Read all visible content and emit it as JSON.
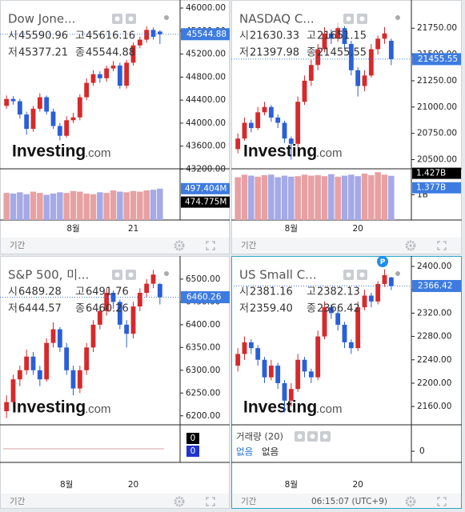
{
  "watermark": {
    "brand": "Investing",
    "domain": ".com"
  },
  "chart_data": [
    {
      "type": "candlestick",
      "title": "Dow Jone...",
      "up_color": "#d6292b",
      "down_color": "#2a5fd8",
      "info": [
        {
          "key": "시",
          "value": "45590.96"
        },
        {
          "key": "고",
          "value": "45616.16"
        },
        {
          "key": "저",
          "value": "45377.21"
        },
        {
          "key": "종",
          "value": "45544.88"
        }
      ],
      "categories": [
        null,
        null,
        null,
        null,
        null,
        null,
        null,
        null,
        null,
        null,
        "8월",
        null,
        null,
        null,
        null,
        null,
        null,
        null,
        null,
        "21",
        null,
        null,
        null,
        null
      ],
      "candles": [
        [
          44300,
          44480,
          44250,
          44420
        ],
        [
          44420,
          44470,
          44320,
          44380
        ],
        [
          44380,
          44420,
          44080,
          44150
        ],
        [
          44150,
          44200,
          43800,
          43900
        ],
        [
          43900,
          44300,
          43850,
          44250
        ],
        [
          44250,
          44520,
          44200,
          44450
        ],
        [
          44450,
          44480,
          44150,
          44200
        ],
        [
          44200,
          44250,
          43900,
          43950
        ],
        [
          43950,
          44000,
          43700,
          43780
        ],
        [
          43780,
          44120,
          43750,
          44050
        ],
        [
          44050,
          44180,
          44000,
          44100
        ],
        [
          44100,
          44500,
          44050,
          44450
        ],
        [
          44450,
          44780,
          44400,
          44700
        ],
        [
          44700,
          44920,
          44650,
          44850
        ],
        [
          44850,
          44900,
          44700,
          44780
        ],
        [
          44780,
          45000,
          44720,
          44950
        ],
        [
          44950,
          45080,
          44900,
          45000
        ],
        [
          45000,
          45050,
          44600,
          44650
        ],
        [
          44650,
          45100,
          44600,
          45050
        ],
        [
          45050,
          45400,
          45000,
          45350
        ],
        [
          45350,
          45500,
          45300,
          45450
        ],
        [
          45450,
          45680,
          45400,
          45620
        ],
        [
          45620,
          45660,
          45450,
          45500
        ],
        [
          45590.96,
          45616.16,
          45377.21,
          45544.88
        ]
      ],
      "ylim": [
        43220,
        46070
      ],
      "yticks": [
        {
          "value": 43200,
          "label": "43200.00"
        },
        {
          "value": 43600,
          "label": "43600.00"
        },
        {
          "value": 44000,
          "label": "44000.00"
        },
        {
          "value": 44400,
          "label": "44400.00"
        },
        {
          "value": 44800,
          "label": "44800.00"
        },
        {
          "value": 45200,
          "label": "45200.00"
        },
        {
          "value": 45600,
          "label": "45600.00"
        },
        {
          "value": 46000,
          "label": "46000.00"
        }
      ],
      "volume": [
        430,
        420,
        440,
        410,
        450,
        430,
        400,
        420,
        440,
        430,
        460,
        450,
        420,
        410,
        440,
        430,
        470,
        450,
        440,
        460,
        450,
        470,
        480,
        497.404
      ],
      "vol_ylim": [
        0,
        800
      ],
      "volume_labels": [
        {
          "value": 497.404,
          "label": "497.404M"
        },
        {
          "value": 474.775,
          "label": "474.775M"
        }
      ],
      "volume_label_colors": [
        "#3d7be0",
        "#000000"
      ],
      "footer": "기간"
    },
    {
      "type": "candlestick",
      "title": "NASDAQ C...",
      "up_color": "#d6292b",
      "down_color": "#2a5fd8",
      "info": [
        {
          "key": "시",
          "value": "21630.33"
        },
        {
          "key": "고",
          "value": "21651.15"
        },
        {
          "key": "저",
          "value": "21397.98"
        },
        {
          "key": "종",
          "value": "21455.55"
        }
      ],
      "categories": [
        null,
        null,
        null,
        null,
        null,
        null,
        null,
        null,
        "8월",
        null,
        null,
        null,
        null,
        null,
        null,
        null,
        null,
        null,
        "20",
        null,
        null,
        null,
        null,
        null
      ],
      "candles": [
        [
          20600,
          20750,
          20560,
          20700
        ],
        [
          20700,
          20900,
          20680,
          20850
        ],
        [
          20850,
          20880,
          20760,
          20800
        ],
        [
          20800,
          21000,
          20780,
          20950
        ],
        [
          20950,
          21050,
          20920,
          21000
        ],
        [
          21000,
          21020,
          20860,
          20900
        ],
        [
          20900,
          20930,
          20800,
          20850
        ],
        [
          20850,
          20870,
          20660,
          20700
        ],
        [
          20700,
          20720,
          20500,
          20650
        ],
        [
          20650,
          21100,
          20620,
          21050
        ],
        [
          21050,
          21300,
          21020,
          21250
        ],
        [
          21250,
          21450,
          21200,
          21400
        ],
        [
          21400,
          21600,
          21350,
          21550
        ],
        [
          21550,
          21760,
          21520,
          21700
        ],
        [
          21700,
          21740,
          21600,
          21650
        ],
        [
          21650,
          21800,
          21620,
          21750
        ],
        [
          21750,
          21770,
          21550,
          21600
        ],
        [
          21600,
          21630,
          21300,
          21350
        ],
        [
          21350,
          21380,
          21100,
          21200
        ],
        [
          21200,
          21350,
          21150,
          21300
        ],
        [
          21300,
          21600,
          21280,
          21550
        ],
        [
          21550,
          21680,
          21500,
          21650
        ],
        [
          21650,
          21760,
          21600,
          21700
        ],
        [
          21630.33,
          21651.15,
          21397.98,
          21455.55
        ]
      ],
      "ylim": [
        20420,
        21980
      ],
      "yticks": [
        {
          "value": 20500,
          "label": "20500.00"
        },
        {
          "value": 20750,
          "label": "20750.00"
        },
        {
          "value": 21000,
          "label": "21000.00"
        },
        {
          "value": 21250,
          "label": "21250.00"
        },
        {
          "value": 21500,
          "label": "21500.00"
        },
        {
          "value": 21750,
          "label": "21750.00"
        }
      ],
      "volume": [
        1.35,
        1.4,
        1.38,
        1.36,
        1.39,
        1.4,
        1.35,
        1.38,
        1.36,
        1.37,
        1.4,
        1.38,
        1.39,
        1.37,
        1.41,
        1.36,
        1.38,
        1.4,
        1.37,
        1.42,
        1.39,
        1.45,
        1.4,
        1.377
      ],
      "vol_ylim": [
        0.5,
        1.5
      ],
      "sub_yticks": [
        {
          "value": 1,
          "label": "1B"
        }
      ],
      "volume_labels": [
        {
          "value": 1.427,
          "label": "1.427B"
        },
        {
          "value": 1.377,
          "label": "1.377B"
        }
      ],
      "volume_label_colors": [
        "#000000",
        "#3d7be0"
      ],
      "footer": "기간"
    },
    {
      "type": "candlestick",
      "title": "S&P 500, 미...",
      "up_color": "#d6292b",
      "down_color": "#2a5fd8",
      "info": [
        {
          "key": "시",
          "value": "6489.28"
        },
        {
          "key": "고",
          "value": "6491.76"
        },
        {
          "key": "저",
          "value": "6444.57"
        },
        {
          "key": "종",
          "value": "6460.26"
        }
      ],
      "categories": [
        null,
        null,
        null,
        null,
        null,
        null,
        null,
        null,
        null,
        "8월",
        null,
        null,
        null,
        null,
        null,
        null,
        null,
        null,
        null,
        "20",
        null,
        null,
        null,
        null
      ],
      "candles": [
        [
          6210,
          6245,
          6195,
          6230
        ],
        [
          6230,
          6290,
          6220,
          6280
        ],
        [
          6280,
          6310,
          6265,
          6300
        ],
        [
          6300,
          6345,
          6290,
          6330
        ],
        [
          6330,
          6340,
          6290,
          6300
        ],
        [
          6300,
          6310,
          6265,
          6280
        ],
        [
          6280,
          6370,
          6275,
          6360
        ],
        [
          6360,
          6405,
          6350,
          6390
        ],
        [
          6390,
          6395,
          6340,
          6350
        ],
        [
          6350,
          6360,
          6290,
          6300
        ],
        [
          6300,
          6310,
          6245,
          6260
        ],
        [
          6260,
          6310,
          6250,
          6300
        ],
        [
          6300,
          6360,
          6290,
          6350
        ],
        [
          6350,
          6410,
          6340,
          6400
        ],
        [
          6400,
          6440,
          6390,
          6430
        ],
        [
          6430,
          6480,
          6420,
          6470
        ],
        [
          6470,
          6475,
          6435,
          6450
        ],
        [
          6450,
          6455,
          6390,
          6400
        ],
        [
          6400,
          6410,
          6350,
          6380
        ],
        [
          6380,
          6450,
          6370,
          6440
        ],
        [
          6440,
          6480,
          6430,
          6470
        ],
        [
          6470,
          6500,
          6460,
          6490
        ],
        [
          6490,
          6520,
          6480,
          6510
        ],
        [
          6489.28,
          6491.76,
          6444.57,
          6460.26
        ]
      ],
      "ylim": [
        6182,
        6542
      ],
      "yticks": [
        {
          "value": 6200,
          "label": "6200.00"
        },
        {
          "value": 6250,
          "label": "6250.00"
        },
        {
          "value": 6300,
          "label": "6300.00"
        },
        {
          "value": 6350,
          "label": "6350.00"
        },
        {
          "value": 6400,
          "label": "6400.00"
        },
        {
          "value": 6450,
          "label": "6450.00"
        },
        {
          "value": 6500,
          "label": "6500.00"
        }
      ],
      "volume_labels": [
        0,
        0
      ],
      "volume_label_colors": [
        "#000000",
        "#2233cc"
      ],
      "footer": "기간"
    },
    {
      "type": "candlestick",
      "title": "US Small C...",
      "badge": "P",
      "up_color": "#d6292b",
      "down_color": "#2a5fd8",
      "info": [
        {
          "key": "시",
          "value": "2381.16"
        },
        {
          "key": "고",
          "value": "2382.13"
        },
        {
          "key": "저",
          "value": "2359.40"
        },
        {
          "key": "종",
          "value": "2366.42"
        }
      ],
      "categories": [
        null,
        null,
        null,
        null,
        null,
        null,
        null,
        null,
        "8월",
        null,
        null,
        null,
        null,
        null,
        null,
        null,
        null,
        null,
        "20",
        null,
        null,
        null,
        null,
        null
      ],
      "candles": [
        [
          2230,
          2260,
          2220,
          2250
        ],
        [
          2250,
          2280,
          2240,
          2270
        ],
        [
          2270,
          2275,
          2250,
          2260
        ],
        [
          2260,
          2265,
          2230,
          2240
        ],
        [
          2240,
          2245,
          2200,
          2210
        ],
        [
          2210,
          2240,
          2205,
          2230
        ],
        [
          2230,
          2235,
          2190,
          2200
        ],
        [
          2200,
          2205,
          2150,
          2170
        ],
        [
          2170,
          2200,
          2160,
          2190
        ],
        [
          2190,
          2250,
          2185,
          2240
        ],
        [
          2240,
          2245,
          2210,
          2220
        ],
        [
          2220,
          2225,
          2200,
          2210
        ],
        [
          2210,
          2290,
          2205,
          2280
        ],
        [
          2280,
          2340,
          2275,
          2330
        ],
        [
          2330,
          2335,
          2310,
          2320
        ],
        [
          2320,
          2325,
          2290,
          2300
        ],
        [
          2300,
          2305,
          2260,
          2270
        ],
        [
          2270,
          2275,
          2250,
          2260
        ],
        [
          2260,
          2340,
          2255,
          2330
        ],
        [
          2330,
          2360,
          2325,
          2350
        ],
        [
          2350,
          2355,
          2330,
          2340
        ],
        [
          2340,
          2375,
          2335,
          2370
        ],
        [
          2370,
          2395,
          2365,
          2385
        ],
        [
          2381.16,
          2382.13,
          2359.4,
          2366.42
        ]
      ],
      "ylim": [
        2130,
        2411
      ],
      "yticks": [
        {
          "value": 2160,
          "label": "2160.00"
        },
        {
          "value": 2200,
          "label": "2200.00"
        },
        {
          "value": 2240,
          "label": "2240.00"
        },
        {
          "value": 2280,
          "label": "2280.00"
        },
        {
          "value": 2320,
          "label": "2320.00"
        },
        {
          "value": 2360,
          "label": "2360.00"
        },
        {
          "value": 2400,
          "label": "2400.00"
        }
      ],
      "indicator": {
        "name": "거래량 (20)",
        "values": [
          "없음",
          "없음"
        ]
      },
      "sub_yticks": [
        0
      ],
      "footer": "기간",
      "time": "06:15:07 (UTC+9)"
    }
  ]
}
